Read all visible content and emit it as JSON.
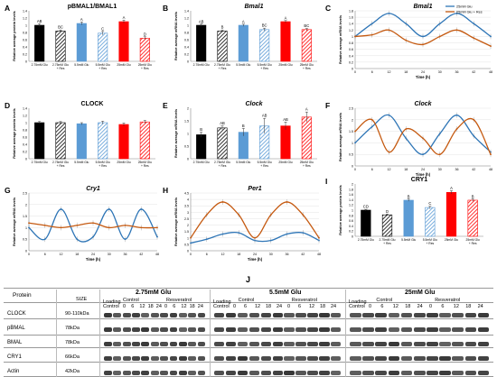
{
  "colors": {
    "black": "#000000",
    "blue": "#5b9bd5",
    "red": "#ff0000",
    "line_blue": "#2e75b6",
    "line_orange": "#c55a11"
  },
  "chart_data": [
    {
      "panel": "A",
      "type": "bar",
      "title": "pBMAL1/BMAL1",
      "xlabel": "",
      "ylabel": "Relative average protein levels",
      "ylim": [
        0,
        1.4
      ],
      "yticks": [
        "0",
        "0.2",
        "0.4",
        "0.6",
        "0.8",
        "1",
        "1.2",
        "1.4"
      ],
      "categories": [
        "2.75mM Glu",
        "2.75mM Glu + Res",
        "5.5mM Glu",
        "5.5mM Glu + Res",
        "25mM Glu",
        "25mM Glu + Res"
      ],
      "values": [
        1.0,
        0.84,
        1.05,
        0.78,
        1.1,
        0.64
      ],
      "errors": [
        0.04,
        0.03,
        0.04,
        0.05,
        0.04,
        0.04
      ],
      "letters": [
        "AB",
        "BC",
        "A",
        "C",
        "A",
        "D"
      ],
      "colors": [
        "black",
        "black",
        "blue",
        "blue",
        "red",
        "red"
      ],
      "hatched": [
        false,
        true,
        false,
        true,
        false,
        true
      ]
    },
    {
      "panel": "B",
      "type": "bar",
      "title": "Bmal1",
      "xlabel": "",
      "ylabel": "Relative average mRNA levels",
      "ylim": [
        0,
        1.4
      ],
      "yticks": [
        "0",
        "0.2",
        "0.4",
        "0.6",
        "0.8",
        "1",
        "1.2",
        "1.4"
      ],
      "categories": [
        "2.75mM Glu",
        "2.75mM Glu + Res",
        "5.5mM Glu",
        "5.5mM Glu + Res",
        "25mM Glu",
        "25mM Glu + Res"
      ],
      "values": [
        1.0,
        0.84,
        1.0,
        0.88,
        1.1,
        0.88
      ],
      "errors": [
        0.03,
        0.03,
        0.03,
        0.04,
        0.03,
        0.03
      ],
      "letters": [
        "AB",
        "B",
        "A",
        "BC",
        "A",
        "BC"
      ],
      "colors": [
        "black",
        "black",
        "blue",
        "blue",
        "red",
        "red"
      ],
      "hatched": [
        false,
        true,
        false,
        true,
        false,
        true
      ]
    },
    {
      "panel": "C",
      "type": "line",
      "title": "Bmal1",
      "xlabel": "Time (h)",
      "ylabel": "Relative average mRNA levels",
      "ylim": [
        0,
        1.8
      ],
      "xlim": [
        0,
        48
      ],
      "yticks": [
        "0",
        "0.2",
        "0.4",
        "0.6",
        "0.8",
        "1",
        "1.2",
        "1.4",
        "1.6",
        "1.8"
      ],
      "xticks": [
        0,
        6,
        12,
        18,
        24,
        30,
        36,
        42,
        48
      ],
      "x": [
        0,
        6,
        12,
        18,
        24,
        30,
        36,
        42,
        48
      ],
      "series": [
        {
          "name": "25mM Glu",
          "color": "line_blue",
          "values": [
            1.0,
            1.4,
            1.72,
            1.4,
            1.0,
            1.4,
            1.72,
            1.4,
            1.0
          ]
        },
        {
          "name": "25mM Glu + Res",
          "color": "line_orange",
          "values": [
            1.0,
            1.05,
            1.2,
            0.88,
            0.75,
            1.0,
            1.2,
            0.95,
            0.7
          ]
        }
      ],
      "legend": "top-right"
    },
    {
      "panel": "D",
      "type": "bar",
      "title": "CLOCK",
      "xlabel": "",
      "ylabel": "Relative average protein levels",
      "ylim": [
        0,
        1.4
      ],
      "yticks": [
        "0",
        "0.2",
        "0.4",
        "0.6",
        "0.8",
        "1",
        "1.2",
        "1.4"
      ],
      "categories": [
        "2.75mM Glu",
        "2.75mM Glu + Res",
        "5.5mM Glu",
        "5.5mM Glu + Res",
        "25mM Glu",
        "25mM Glu + Res"
      ],
      "values": [
        1.0,
        1.0,
        0.97,
        1.0,
        0.95,
        1.02
      ],
      "errors": [
        0.03,
        0.03,
        0.03,
        0.04,
        0.04,
        0.04
      ],
      "letters": [
        "",
        "",
        "",
        "",
        "",
        ""
      ],
      "colors": [
        "black",
        "black",
        "blue",
        "blue",
        "red",
        "red"
      ],
      "hatched": [
        false,
        true,
        false,
        true,
        false,
        true
      ]
    },
    {
      "panel": "E",
      "type": "bar",
      "title": "Clock",
      "xlabel": "",
      "ylabel": "Relative average mRNA levels",
      "ylim": [
        0,
        2
      ],
      "yticks": [
        "0",
        "0.5",
        "1",
        "1.5",
        "2"
      ],
      "categories": [
        "2.75mM Glu",
        "2.75mM Glu + Res",
        "5.5mM Glu",
        "5.5mM Glu + Res",
        "25mM Glu",
        "25mM Glu + Res"
      ],
      "values": [
        0.95,
        1.22,
        1.05,
        1.3,
        1.3,
        1.65
      ],
      "errors": [
        0.1,
        0.08,
        0.15,
        0.3,
        0.15,
        0.2
      ],
      "letters": [
        "B",
        "AB",
        "B",
        "AB",
        "AB",
        "A"
      ],
      "colors": [
        "black",
        "black",
        "blue",
        "blue",
        "red",
        "red"
      ],
      "hatched": [
        false,
        true,
        false,
        true,
        false,
        true
      ]
    },
    {
      "panel": "F",
      "type": "line",
      "title": "Clock",
      "xlabel": "Time (h)",
      "ylabel": "Relative average mRNA levels",
      "ylim": [
        0,
        2.5
      ],
      "xlim": [
        0,
        48
      ],
      "yticks": [
        "0",
        "0.5",
        "1",
        "1.5",
        "2",
        "2.5"
      ],
      "xticks": [
        0,
        6,
        12,
        18,
        24,
        30,
        36,
        42,
        48
      ],
      "x": [
        0,
        6,
        12,
        18,
        24,
        30,
        36,
        42,
        48
      ],
      "series": [
        {
          "name": "",
          "color": "line_blue",
          "values": [
            1.0,
            1.7,
            2.2,
            1.2,
            0.5,
            1.4,
            2.2,
            1.3,
            0.6
          ]
        },
        {
          "name": "",
          "color": "line_orange",
          "values": [
            1.5,
            2.0,
            0.6,
            1.6,
            1.2,
            0.5,
            1.6,
            2.0,
            0.5
          ]
        }
      ]
    },
    {
      "panel": "G",
      "type": "line",
      "title": "Cry1",
      "xlabel": "Time (h)",
      "ylabel": "Relative average mRNA levels",
      "ylim": [
        0,
        2.5
      ],
      "xlim": [
        0,
        48
      ],
      "yticks": [
        "0",
        "0.5",
        "1",
        "1.5",
        "2",
        "2.5"
      ],
      "xticks": [
        0,
        6,
        12,
        18,
        24,
        30,
        36,
        42,
        48
      ],
      "x": [
        0,
        6,
        12,
        18,
        24,
        30,
        36,
        42,
        48
      ],
      "series": [
        {
          "name": "",
          "color": "line_blue",
          "values": [
            1.0,
            0.5,
            1.8,
            0.5,
            0.6,
            1.8,
            0.5,
            1.8,
            0.6
          ]
        },
        {
          "name": "",
          "color": "line_orange",
          "values": [
            1.2,
            1.1,
            1.0,
            1.1,
            1.2,
            1.0,
            1.1,
            1.0,
            1.0
          ]
        }
      ]
    },
    {
      "panel": "H",
      "type": "line",
      "title": "Per1",
      "xlabel": "Time (h)",
      "ylabel": "Relative average mRNA levels",
      "ylim": [
        0,
        4.5
      ],
      "xlim": [
        0,
        48
      ],
      "yticks": [
        "0",
        "0.5",
        "1",
        "1.5",
        "2",
        "2.5",
        "3",
        "3.5",
        "4",
        "4.5"
      ],
      "xticks": [
        0,
        6,
        12,
        18,
        24,
        30,
        36,
        42,
        48
      ],
      "x": [
        0,
        6,
        12,
        18,
        24,
        30,
        36,
        42,
        48
      ],
      "series": [
        {
          "name": "",
          "color": "line_blue",
          "values": [
            0.6,
            0.9,
            1.3,
            1.4,
            0.8,
            0.8,
            1.3,
            1.4,
            0.8
          ]
        },
        {
          "name": "",
          "color": "line_orange",
          "values": [
            1.0,
            2.8,
            3.8,
            2.8,
            1.0,
            2.8,
            3.8,
            2.8,
            1.0
          ]
        }
      ]
    },
    {
      "panel": "I",
      "type": "bar",
      "title": "CRY1",
      "xlabel": "",
      "ylabel": "Relative average protein levels",
      "ylim": [
        0,
        2
      ],
      "yticks": [
        "0",
        "0.2",
        "0.4",
        "0.6",
        "0.8",
        "1",
        "1.2",
        "1.4",
        "1.6",
        "1.8",
        "2"
      ],
      "categories": [
        "2.75mM Glu",
        "2.75mM Glu + Res",
        "5.5mM Glu",
        "5.5mM Glu + Res",
        "25mM Glu",
        "25mM Glu + Res"
      ],
      "values": [
        1.0,
        0.82,
        1.38,
        1.1,
        1.68,
        1.38
      ],
      "errors": [
        0.03,
        0.03,
        0.04,
        0.05,
        0.06,
        0.04
      ],
      "letters": [
        "CD",
        "D",
        "B",
        "C",
        "A",
        "B"
      ],
      "colors": [
        "black",
        "black",
        "blue",
        "blue",
        "red",
        "red"
      ],
      "hatched": [
        false,
        true,
        false,
        true,
        false,
        true
      ]
    }
  ],
  "blot": {
    "panel_letter": "J",
    "header_protein": "Protein",
    "header_size": "SIZE",
    "groups": [
      {
        "title": "2.75mM Glu",
        "control": "Control",
        "resveratrol": "Resveratrol"
      },
      {
        "title": "5.5mM Glu",
        "control": "Control",
        "resveratrol": "Resveratrol"
      },
      {
        "title": "25mM Glu",
        "control": "Control",
        "resveratrol": "Resveratrol"
      }
    ],
    "loading_control": "Loading Control",
    "timepoints": [
      "0",
      "6",
      "12",
      "18",
      "24",
      "0",
      "6",
      "12",
      "18",
      "24"
    ],
    "rows": [
      {
        "protein": "CLOCK",
        "size": "90-110kDa"
      },
      {
        "protein": "pBMAL",
        "size": "78kDa"
      },
      {
        "protein": "BMAL",
        "size": "78kDa"
      },
      {
        "protein": "CRY1",
        "size": "66kDa"
      },
      {
        "protein": "Actin",
        "size": "42kDa"
      }
    ]
  }
}
